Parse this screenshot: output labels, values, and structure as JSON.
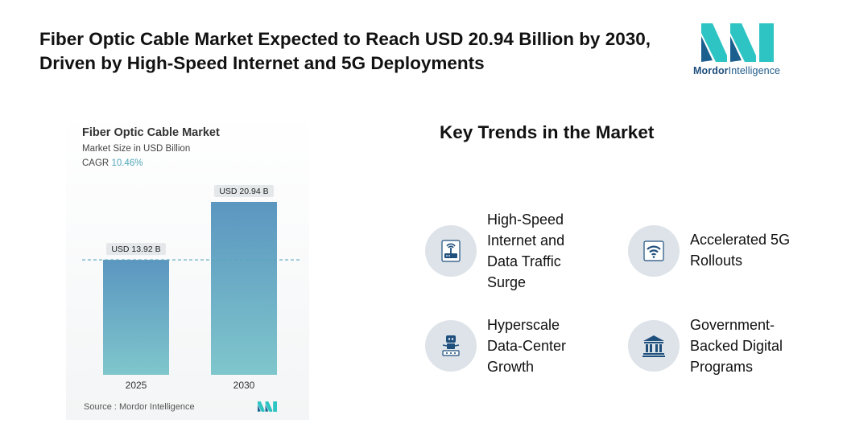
{
  "headline": "Fiber Optic Cable Market Expected to Reach USD 20.94 Billion by 2030, Driven by High-Speed Internet and 5G Deployments",
  "brand": {
    "name_bold": "Mordor",
    "name_rest": "Intelligence"
  },
  "chart": {
    "title": "Fiber Optic Cable Market",
    "subtitle": "Market Size in USD Billion",
    "cagr_label": "CAGR",
    "cagr_value": "10.46%",
    "source": "Source : Mordor Intelligence"
  },
  "chart_data": {
    "type": "bar",
    "categories": [
      "2025",
      "2030"
    ],
    "values": [
      13.92,
      20.94
    ],
    "value_labels": [
      "USD 13.92 B",
      "USD 20.94 B"
    ],
    "reference_line": 13.92,
    "colors": {
      "bar_top": "#5b96c0",
      "bar_bottom": "#7fc6cc",
      "reference_line": "#5aa7b8",
      "label_bg": "#e4e8eb"
    }
  },
  "trends": {
    "title": "Key Trends in the Market",
    "items": [
      {
        "text": "High-Speed\nInternet and\nData Traffic\nSurge",
        "icon": "router-icon"
      },
      {
        "text": "Accelerated 5G\nRollouts",
        "icon": "wifi-icon"
      },
      {
        "text": "Hyperscale\nData-Center\nGrowth",
        "icon": "robot-server-icon"
      },
      {
        "text": "Government-\nBacked Digital\nPrograms",
        "icon": "government-building-icon"
      }
    ]
  },
  "colors": {
    "icon_circle": "#dde3e8",
    "icon_fg": "#1f4f7d",
    "accent": "#4fa7b8"
  }
}
